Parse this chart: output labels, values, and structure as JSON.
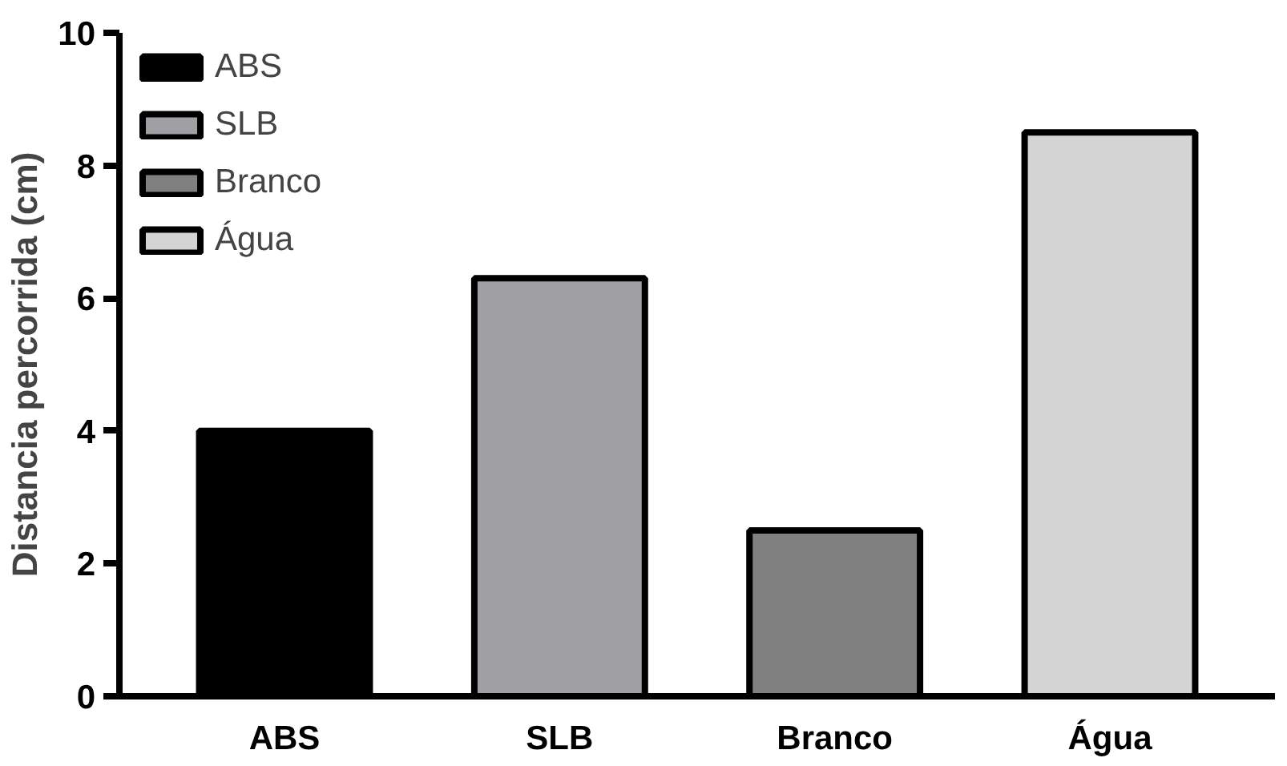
{
  "chart_data": {
    "type": "bar",
    "ylabel": "Distancia percorrida (cm)",
    "categories": [
      "ABS",
      "SLB",
      "Branco",
      "Água"
    ],
    "series": [
      {
        "name": "ABS",
        "color": "#000000",
        "values": [
          4.0,
          null,
          null,
          null
        ]
      },
      {
        "name": "SLB",
        "color": "#a0a0a4",
        "values": [
          null,
          6.3,
          null,
          null
        ]
      },
      {
        "name": "Branco",
        "color": "#808080",
        "values": [
          null,
          null,
          2.5,
          null
        ]
      },
      {
        "name": "Água",
        "color": "#d4d4d4",
        "values": [
          null,
          null,
          null,
          8.5
        ]
      }
    ],
    "ylim": [
      0,
      10
    ],
    "yticks": [
      0,
      2,
      4,
      6,
      8,
      10
    ],
    "grid": false,
    "legend": "top left"
  }
}
